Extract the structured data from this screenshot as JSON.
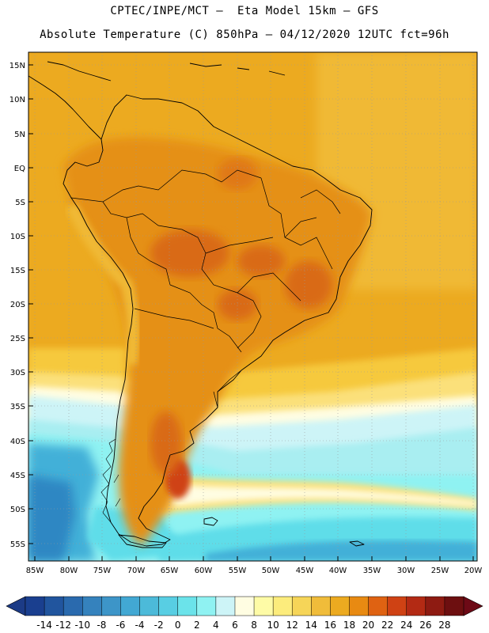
{
  "title": {
    "line1": "CPTEC/INPE/MCT –  Eta Model 15km – GFS",
    "line2": "Absolute Temperature (C) 850hPa – 04/12/2020 12UTC fct=96h"
  },
  "axes": {
    "lat_labels": [
      "15N",
      "10N",
      "5N",
      "EQ",
      "5S",
      "10S",
      "15S",
      "20S",
      "25S",
      "30S",
      "35S",
      "40S",
      "45S",
      "50S",
      "55S"
    ],
    "lon_labels": [
      "85W",
      "80W",
      "75W",
      "70W",
      "65W",
      "60W",
      "55W",
      "50W",
      "45W",
      "40W",
      "35W",
      "30W",
      "25W",
      "20W"
    ]
  },
  "colorbar": {
    "labels": [
      "-14",
      "-12",
      "-10",
      "-8",
      "-6",
      "-4",
      "-2",
      "0",
      "2",
      "4",
      "6",
      "8",
      "10",
      "12",
      "14",
      "16",
      "18",
      "20",
      "22",
      "24",
      "26",
      "28"
    ],
    "colors": [
      "#1a3f8f",
      "#21559e",
      "#2a6aae",
      "#3582bd",
      "#3d95c8",
      "#42a8d3",
      "#4cbad9",
      "#58cee3",
      "#6be3ea",
      "#8ff2f2",
      "#cdf4f7",
      "#fffde2",
      "#fefba6",
      "#fcec7c",
      "#f6d558",
      "#f0bc3a",
      "#ecaa20",
      "#e88a12",
      "#df6212",
      "#cf4214",
      "#b32a14",
      "#8e1b12",
      "#6d0f10"
    ],
    "under_color": "#1c3b86",
    "over_color": "#6d0a16"
  },
  "palette": {
    "ocean_north": "#ecaa20",
    "land_main": "#e59017",
    "hot": "#d96a14",
    "warm_band": "#f6c93e",
    "yellow": "#fbe07a",
    "cream": "#fffde2",
    "pale_cyan": "#cdf4f7",
    "cyan": "#8ff2f2",
    "cyan2": "#5fdde9",
    "blue": "#42b0d8",
    "deep_blue": "#2f87c3",
    "border": "#000000"
  }
}
